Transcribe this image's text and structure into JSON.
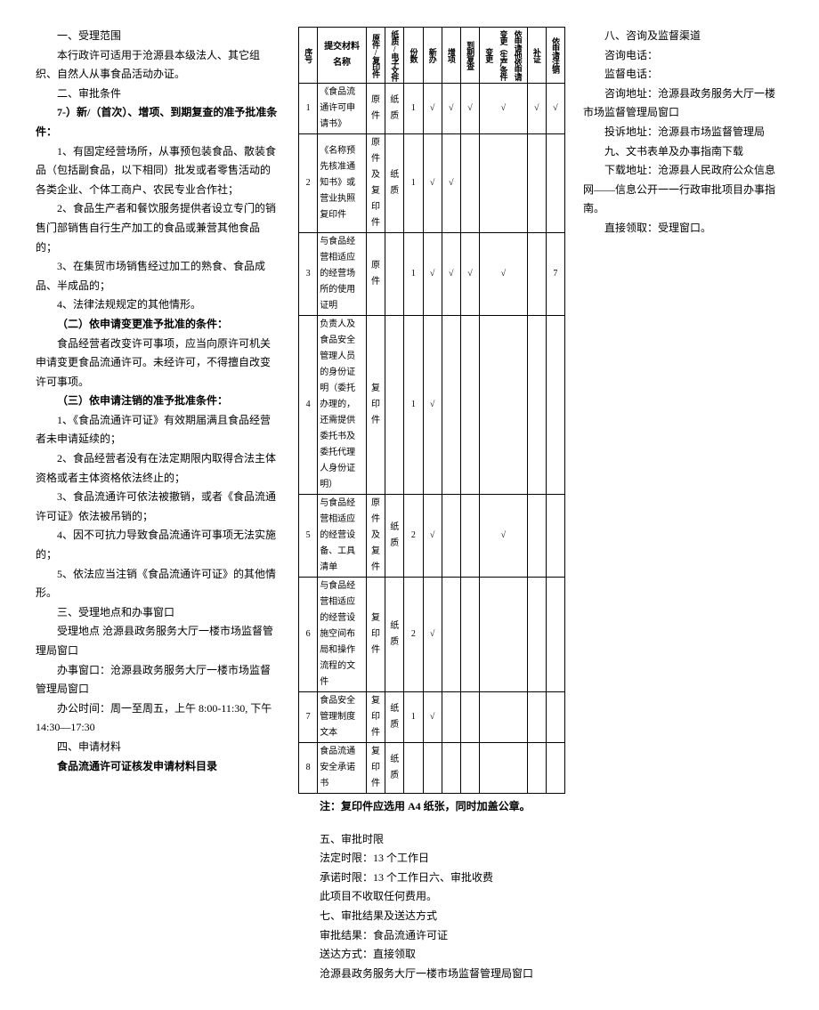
{
  "col1": {
    "h1": "一、受理范围",
    "p1": "本行政许可适用于沧源县本级法人、其它组织、自然人从事食品活动办证。",
    "h2": "二、审批条件",
    "h3": "7-）新/（首次）、增项、到期复查的准予批准条件：",
    "p2": "1、有固定经营场所，从事预包装食品、散装食品（包括副食品，以下相同）批发或者零售活动的各类企业、个体工商户、农民专业合作社；",
    "p3": "2、食品生产者和餐饮服务提供者设立专门的销售门部销售自行生产加工的食品或兼营其他食品的；",
    "p4": "3、在集贸市场销售经过加工的熟食、食品成品、半成品的；",
    "p5": "4、法律法规规定的其他情形。",
    "h4": "（二）依申请变更准予批准的条件：",
    "p6": "食品经营者改变许可事项，应当向原许可机关申请变更食品流通许可。未经许可，不得擅自改变许可事项。",
    "h5": "（三）依申请注销的准予批准条件：",
    "p7": "1、《食品流通许可证》有效期届满且食品经营者未申请延续的；",
    "p8": "2、食品经营者没有在法定期限内取得合法主体资格或者主体资格依法终止的；",
    "p9": "3、食品流通许可依法被撤销，或者《食品流通许可证》依法被吊销的；",
    "p10": "4、因不可抗力导致食品流通许可事项无法实施的；",
    "p11": "5、依法应当注销《食品流通许可证》的其他情形。",
    "h6": "三、受理地点和办事窗口",
    "p12": "受理地点  沧源县政务服务大厅一楼市场监督管理局窗口",
    "p13": "办事窗口：沧源县政务服务大厅一楼市场监督管理局窗口",
    "p14": "办公时间：周一至周五，上午 8:00-11:30, 下午14:30—17:30",
    "h7": "四、申请材料",
    "h8": "食品流通许可证核发申请材料目录"
  },
  "table": {
    "headers": {
      "c0": "序号",
      "c1": "提交材料名称",
      "c2": "原件/复印件",
      "c3": "纸质/电子文件",
      "c4": "份数",
      "c5": "新办",
      "c6": "增项",
      "c7": "到期复查",
      "c8": "依申请他依申请变更（生产条件变更",
      "c9": "补证",
      "c10": "依申请注销"
    },
    "rows": [
      {
        "n": "1",
        "name": "《食品流通许可申请书》",
        "c2": "原件",
        "c3": "纸质",
        "c4": "1",
        "c5": "√",
        "c6": "√",
        "c7": "√",
        "c8": "√",
        "c9": "√",
        "c10": "√"
      },
      {
        "n": "2",
        "name": "《名称预先核准通知书》或营业执照复印件",
        "c2": "原件及复印件",
        "c3": "纸质",
        "c4": "1",
        "c5": "√",
        "c6": "√",
        "c7": "",
        "c8": "",
        "c9": "",
        "c10": ""
      },
      {
        "n": "3",
        "name": "与食品经营相适应的经营场所的使用证明",
        "c2": "原件",
        "c3": "",
        "c4": "1",
        "c5": "√",
        "c6": "√",
        "c7": "√",
        "c8": "√",
        "c9": "",
        "c10": "7"
      },
      {
        "n": "4",
        "name": "负责人及食品安全管理人员的身份证明（委托办理的，还需提供委托书及委托代理人身份证明）",
        "c2": "复印件",
        "c3": "",
        "c4": "1",
        "c5": "√",
        "c6": "",
        "c7": "",
        "c8": "",
        "c9": "",
        "c10": ""
      },
      {
        "n": "5",
        "name": "与食品经营相适应的经营设备、工具清单",
        "c2": "原件及复件",
        "c3": "纸质",
        "c4": "2",
        "c5": "√",
        "c6": "",
        "c7": "",
        "c8": "√",
        "c9": "",
        "c10": ""
      },
      {
        "n": "6",
        "name": "与食品经营相适应的经营设施空间布局和操作流程的文件",
        "c2": "复印件",
        "c3": "纸质",
        "c4": "2",
        "c5": "√",
        "c6": "",
        "c7": "",
        "c8": "",
        "c9": "",
        "c10": ""
      },
      {
        "n": "7",
        "name": "食品安全管理制度文本",
        "c2": "复印件",
        "c3": "纸质",
        "c4": "1",
        "c5": "√",
        "c6": "",
        "c7": "",
        "c8": "",
        "c9": "",
        "c10": ""
      },
      {
        "n": "8",
        "name": "食品流通安全承诺书",
        "c2": "复印件",
        "c3": "纸质",
        "c4": "",
        "c5": "",
        "c6": "",
        "c7": "",
        "c8": "",
        "c9": "",
        "c10": ""
      }
    ],
    "note": "注：复印件应选用 A4 纸张，同时加盖公章。"
  },
  "col2b": {
    "h1": "五、审批时限",
    "p1": "法定时限：13 个工作日",
    "p2": "承诺时限：13 个工作日六、审批收费",
    "p3": "此项目不收取任何费用。",
    "h2": "七、审批结果及送达方式",
    "p4": "审批结果：食品流通许可证",
    "p5": "送达方式：直接领取",
    "p6": "沧源县政务服务大厅一楼市场监督管理局窗口"
  },
  "col3": {
    "h1": "八、咨询及监督渠道",
    "p1": "咨询电话：",
    "p2": "监督电话：",
    "p3": "咨询地址：沧源县政务服务大厅一楼市场监督管理局窗口",
    "p4": "投诉地址：沧源县市场监督管理局",
    "h2": "九、文书表单及办事指南下载",
    "p5": "下载地址：沧源县人民政府公众信息网——信息公开一一行政审批项目办事指南。",
    "p6": "直接领取：受理窗口。"
  }
}
